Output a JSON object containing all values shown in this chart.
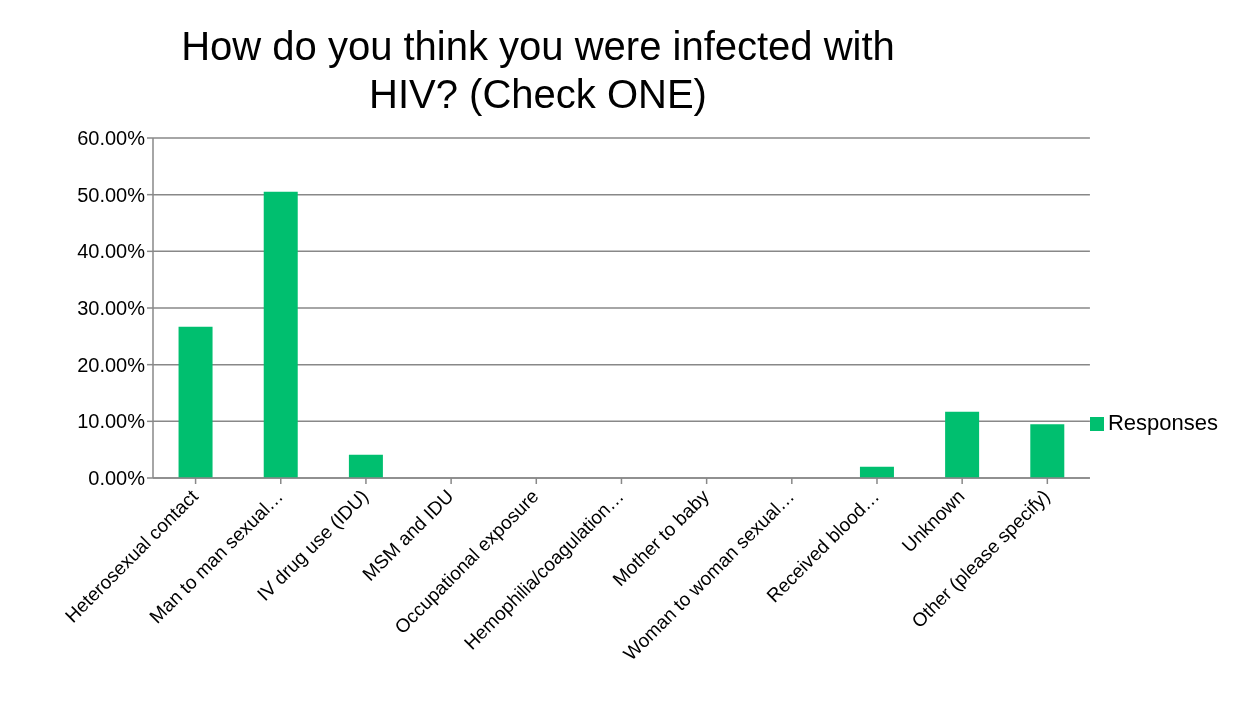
{
  "chart_data": {
    "type": "bar",
    "title": "How do you think you were infected with HIV? (Check ONE)",
    "categories": [
      "Heterosexual contact",
      "Man to man sexual…",
      "IV drug use (IDU)",
      "MSM and IDU",
      "Occupational exposure",
      "Hemophilia/coagulation…",
      "Mother to baby",
      "Woman to woman sexual…",
      "Received blood…",
      "Unknown",
      "Other (please specify)"
    ],
    "series": [
      {
        "name": "Responses",
        "color": "#00bf6f",
        "values": [
          26.7,
          50.5,
          4.1,
          0,
          0,
          0,
          0,
          0,
          2.0,
          11.7,
          9.5
        ]
      }
    ],
    "ylim": [
      0,
      60
    ],
    "yticks": [
      {
        "value": 0,
        "label": "0.00%"
      },
      {
        "value": 10,
        "label": "10.00%"
      },
      {
        "value": 20,
        "label": "20.00%"
      },
      {
        "value": 30,
        "label": "30.00%"
      },
      {
        "value": 40,
        "label": "40.00%"
      },
      {
        "value": 50,
        "label": "50.00%"
      },
      {
        "value": 60,
        "label": "60.00%"
      }
    ],
    "grid": "y",
    "legend": "right"
  }
}
